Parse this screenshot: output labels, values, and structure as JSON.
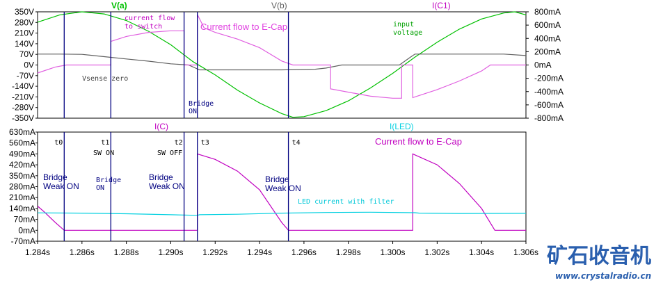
{
  "chart_data": [
    {
      "type": "line",
      "panel": "top",
      "x_range": [
        1.284,
        1.306
      ],
      "y_left_range": [
        -350,
        350
      ],
      "y_left_ticks": [
        "350V",
        "280V",
        "210V",
        "140V",
        "70V",
        "0V",
        "-70V",
        "-140V",
        "-210V",
        "-280V",
        "-350V"
      ],
      "y_right_range": [
        -800,
        800
      ],
      "y_right_ticks": [
        "800mA",
        "600mA",
        "400mA",
        "200mA",
        "0mA",
        "-200mA",
        "-400mA",
        "-600mA",
        "-800mA"
      ],
      "legend": [
        {
          "text": "V(a)",
          "color": "#00c000"
        },
        {
          "text": "V(b)",
          "color": "#606060"
        },
        {
          "text": "I(C1)",
          "color": "#c000c0"
        }
      ],
      "series": [
        {
          "name": "V(a)",
          "color": "#00c000",
          "axis": "left",
          "points": [
            [
              1.284,
              282
            ],
            [
              1.285,
              330
            ],
            [
              1.286,
              350
            ],
            [
              1.287,
              336
            ],
            [
              1.288,
              293
            ],
            [
              1.289,
              222
            ],
            [
              1.29,
              133
            ],
            [
              1.291,
              22
            ],
            [
              1.292,
              -65
            ],
            [
              1.293,
              -165
            ],
            [
              1.294,
              -250
            ],
            [
              1.295,
              -320
            ],
            [
              1.2955,
              -344
            ],
            [
              1.296,
              -340
            ],
            [
              1.297,
              -300
            ],
            [
              1.298,
              -236
            ],
            [
              1.299,
              -151
            ],
            [
              1.3,
              -55
            ],
            [
              1.301,
              52
            ],
            [
              1.302,
              150
            ],
            [
              1.303,
              236
            ],
            [
              1.304,
              303
            ],
            [
              1.305,
              342
            ],
            [
              1.3055,
              350
            ],
            [
              1.306,
              330
            ]
          ]
        },
        {
          "name": "V(b)",
          "color": "#606060",
          "axis": "left",
          "points": [
            [
              1.284,
              72
            ],
            [
              1.285,
              72
            ],
            [
              1.286,
              70
            ],
            [
              1.287,
              55
            ],
            [
              1.288,
              40
            ],
            [
              1.289,
              25
            ],
            [
              1.29,
              8
            ],
            [
              1.2908,
              0
            ],
            [
              1.2913,
              -32
            ],
            [
              1.292,
              -32
            ],
            [
              1.295,
              -32
            ],
            [
              1.2965,
              -28
            ],
            [
              1.297,
              -20
            ],
            [
              1.2977,
              0
            ],
            [
              1.3,
              0
            ],
            [
              1.3003,
              0
            ],
            [
              1.3008,
              52
            ],
            [
              1.301,
              72
            ],
            [
              1.305,
              72
            ],
            [
              1.306,
              62
            ]
          ]
        },
        {
          "name": "I(C1)",
          "color": "#e060e0",
          "axis": "right",
          "points": [
            [
              1.284,
              -120
            ],
            [
              1.2848,
              -30
            ],
            [
              1.2853,
              0
            ],
            [
              1.2873,
              0
            ],
            [
              1.2873,
              355
            ],
            [
              1.288,
              430
            ],
            [
              1.289,
              490
            ],
            [
              1.29,
              515
            ],
            [
              1.2906,
              515
            ],
            [
              1.2906,
              0
            ],
            [
              1.2912,
              0
            ],
            [
              1.2912,
              760
            ],
            [
              1.2915,
              560
            ],
            [
              1.292,
              490
            ],
            [
              1.293,
              390
            ],
            [
              1.294,
              260
            ],
            [
              1.295,
              60
            ],
            [
              1.2955,
              0
            ],
            [
              1.2972,
              0
            ],
            [
              1.2972,
              -360
            ],
            [
              1.299,
              -470
            ],
            [
              1.3,
              -500
            ],
            [
              1.3004,
              -500
            ],
            [
              1.3004,
              0
            ],
            [
              1.3009,
              0
            ],
            [
              1.3009,
              -490
            ],
            [
              1.302,
              -370
            ],
            [
              1.303,
              -240
            ],
            [
              1.304,
              -90
            ],
            [
              1.3044,
              0
            ],
            [
              1.306,
              0
            ]
          ]
        }
      ]
    },
    {
      "type": "line",
      "panel": "bottom",
      "x_range": [
        1.284,
        1.306
      ],
      "x_ticks": [
        "1.284s",
        "1.286s",
        "1.288s",
        "1.290s",
        "1.292s",
        "1.294s",
        "1.296s",
        "1.298s",
        "1.300s",
        "1.302s",
        "1.304s",
        "1.306s"
      ],
      "y_range": [
        -70,
        630
      ],
      "y_ticks": [
        "630mA",
        "560mA",
        "490mA",
        "420mA",
        "350mA",
        "280mA",
        "210mA",
        "140mA",
        "70mA",
        "0mA",
        "-70mA"
      ],
      "legend": [
        {
          "text": "I(C)",
          "color": "#c000c0"
        },
        {
          "text": "I(LED)",
          "color": "#00d0e0"
        }
      ],
      "series": [
        {
          "name": "I(C)",
          "color": "#c000c0",
          "points": [
            [
              1.284,
              155
            ],
            [
              1.2843,
              118
            ],
            [
              1.2848,
              50
            ],
            [
              1.2852,
              0
            ],
            [
              1.2912,
              0
            ],
            [
              1.2912,
              490
            ],
            [
              1.292,
              455
            ],
            [
              1.293,
              380
            ],
            [
              1.294,
              260
            ],
            [
              1.295,
              50
            ],
            [
              1.2953,
              0
            ],
            [
              1.3009,
              0
            ],
            [
              1.3009,
              490
            ],
            [
              1.302,
              420
            ],
            [
              1.303,
              300
            ],
            [
              1.304,
              140
            ],
            [
              1.3046,
              0
            ],
            [
              1.306,
              0
            ]
          ]
        },
        {
          "name": "I(LED)",
          "color": "#00d0e0",
          "points": [
            [
              1.284,
              112
            ],
            [
              1.286,
              110
            ],
            [
              1.288,
              106
            ],
            [
              1.29,
              100
            ],
            [
              1.2912,
              96
            ],
            [
              1.2913,
              100
            ],
            [
              1.293,
              103
            ],
            [
              1.295,
              110
            ],
            [
              1.297,
              114
            ],
            [
              1.299,
              116
            ],
            [
              1.301,
              113
            ],
            [
              1.3012,
              110
            ],
            [
              1.303,
              108
            ],
            [
              1.306,
              109
            ]
          ]
        }
      ]
    }
  ],
  "markers": [
    {
      "t": 1.2852,
      "label": "t0"
    },
    {
      "t": 1.2873,
      "label": "t1"
    },
    {
      "t": 1.2906,
      "label": "t2"
    },
    {
      "t": 1.2912,
      "label": "t3"
    },
    {
      "t": 1.2953,
      "label": "t4"
    }
  ],
  "annotations": {
    "current_flow_to_switch": "current flow\nto switch",
    "current_flow_to_ecap_top": "Current flow to E-Cap",
    "input_voltage": "input\nvoltage",
    "vsense_zero": "Vsense zero",
    "bridge_on_top": "Bridge\nON",
    "current_flow_to_ecap_bottom": "Current flow to E-Cap",
    "sw_on": "SW ON",
    "sw_off": "SW OFF",
    "bridge_weak_on_1": "Bridge\nWeak ON",
    "bridge_on_bottom": "Bridge\nON",
    "bridge_weak_on_2": "Bridge\nWeak ON",
    "bridge_weak_on_3": "Bridge\nWeak ON",
    "led_current_with_filter": "LED current with filter"
  },
  "watermark": {
    "chinese": "矿石收音机",
    "url": "www.crystalradio.cn"
  }
}
